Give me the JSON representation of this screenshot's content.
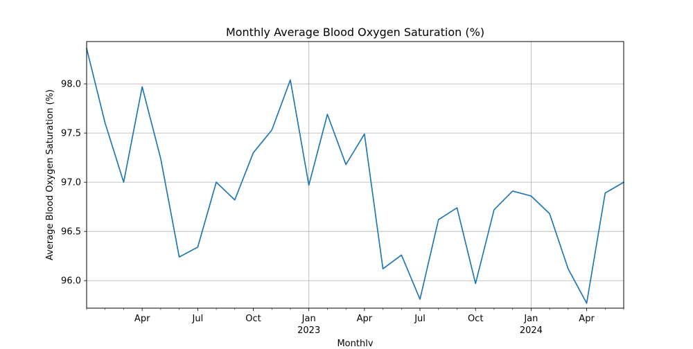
{
  "chart_data": {
    "type": "line",
    "title": "Monthly Average Blood Oxygen Saturation (%)",
    "xlabel": "Monthly",
    "ylabel": "Average Blood Oxygen Saturation (%)",
    "grid": true,
    "line_color": "#1f77b4",
    "xlim": [
      "2022-01",
      "2024-06"
    ],
    "ylim": [
      95.72,
      98.43
    ],
    "y_ticks": [
      {
        "value": 96.0,
        "label": "96.0"
      },
      {
        "value": 96.5,
        "label": "96.5"
      },
      {
        "value": 97.0,
        "label": "97.0"
      },
      {
        "value": 97.5,
        "label": "97.5"
      },
      {
        "value": 98.0,
        "label": "98.0"
      }
    ],
    "x_major_ticks": [
      {
        "month": "2022-04",
        "label": "Apr",
        "year": ""
      },
      {
        "month": "2022-07",
        "label": "Jul",
        "year": ""
      },
      {
        "month": "2022-10",
        "label": "Oct",
        "year": ""
      },
      {
        "month": "2023-01",
        "label": "Jan",
        "year": "2023"
      },
      {
        "month": "2023-04",
        "label": "Apr",
        "year": ""
      },
      {
        "month": "2023-07",
        "label": "Jul",
        "year": ""
      },
      {
        "month": "2023-10",
        "label": "Oct",
        "year": ""
      },
      {
        "month": "2024-01",
        "label": "Jan",
        "year": "2024"
      },
      {
        "month": "2024-04",
        "label": "Apr",
        "year": ""
      }
    ],
    "series": [
      {
        "x": [
          "2022-01",
          "2022-02",
          "2022-03",
          "2022-04",
          "2022-05",
          "2022-06",
          "2022-07",
          "2022-08",
          "2022-09",
          "2022-10",
          "2022-11",
          "2022-12",
          "2023-01",
          "2023-02",
          "2023-03",
          "2023-04",
          "2023-05",
          "2023-06",
          "2023-07",
          "2023-08",
          "2023-09",
          "2023-10",
          "2023-11",
          "2023-12",
          "2024-01",
          "2024-02",
          "2024-03",
          "2024-04",
          "2024-05",
          "2024-06"
        ],
        "values": [
          98.36,
          97.6,
          97.0,
          97.97,
          97.24,
          96.24,
          96.34,
          97.0,
          96.82,
          97.3,
          97.53,
          98.04,
          96.97,
          97.69,
          97.18,
          97.49,
          96.12,
          96.26,
          95.81,
          96.62,
          96.74,
          95.97,
          96.72,
          96.91,
          96.86,
          96.68,
          96.12,
          95.77,
          96.89,
          97.0
        ]
      }
    ]
  }
}
